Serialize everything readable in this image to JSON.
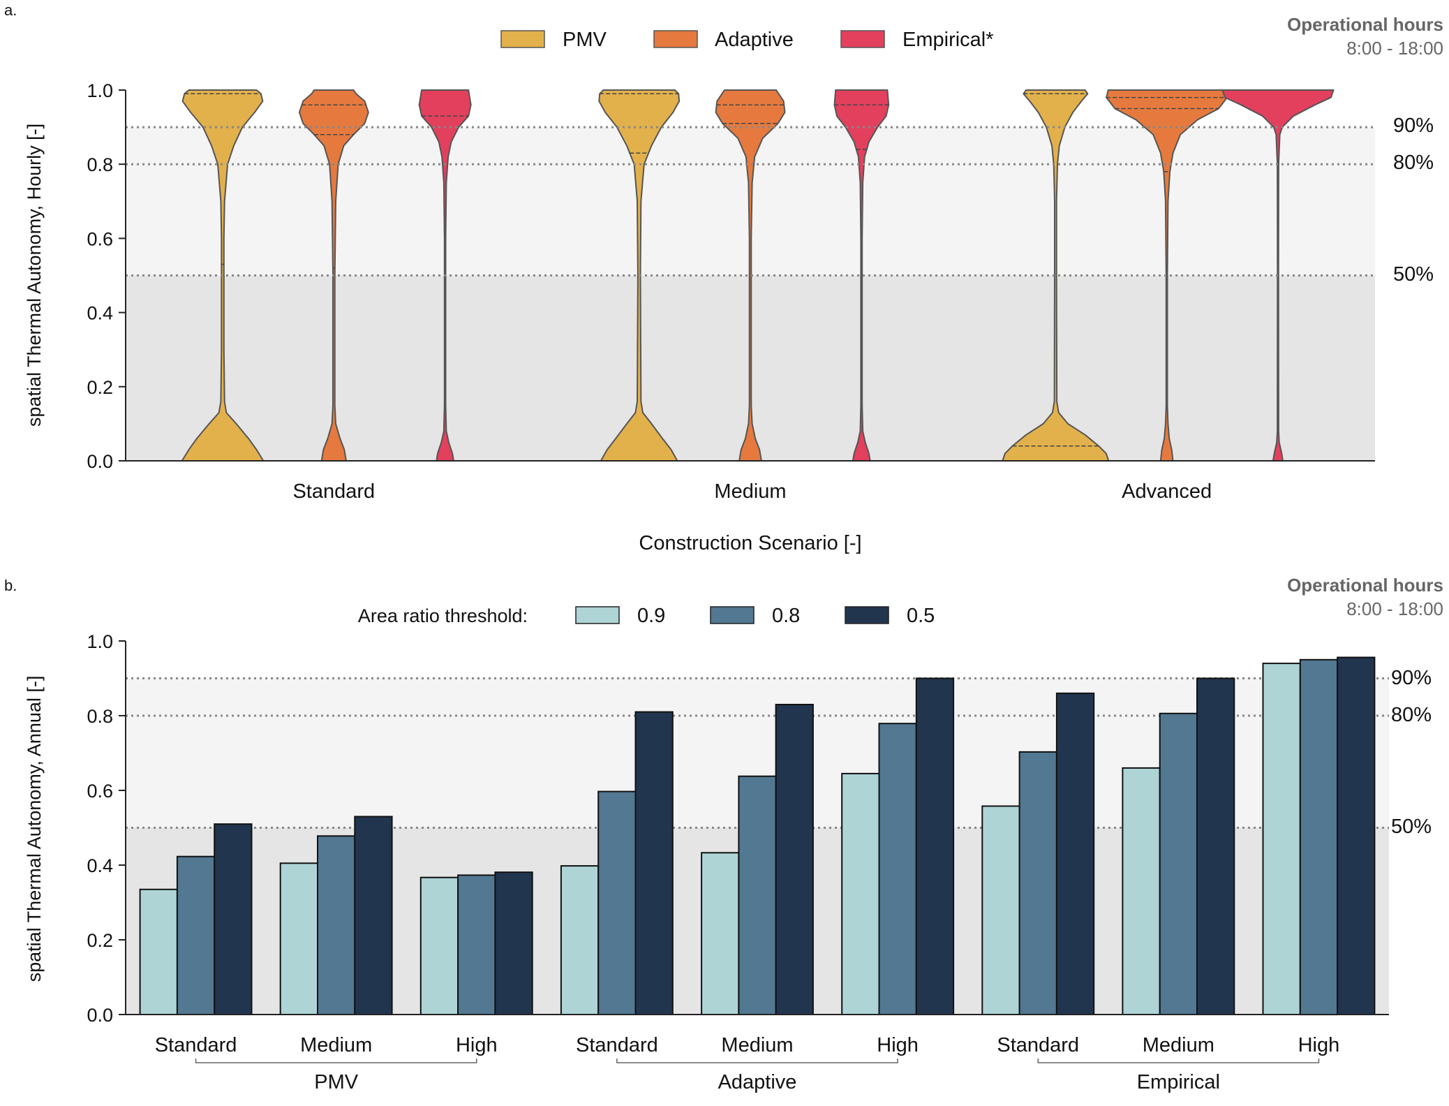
{
  "panel_a": {
    "letter": "a.",
    "ops_title": "Operational hours",
    "ops_time": "8:00 - 18:00",
    "ylabel": "spatial Thermal Autonomy, Hourly [-]",
    "xlabel": "Construction Scenario [-]",
    "legend": [
      "PMV",
      "Adaptive",
      "Empirical*"
    ],
    "ref_labels": [
      "90%",
      "80%",
      "50%"
    ]
  },
  "panel_b": {
    "letter": "b.",
    "ops_title": "Operational hours",
    "ops_time": "8:00 - 18:00",
    "ylabel": "spatial Thermal Autonomy, Annual [-]",
    "legend_title": "Area ratio threshold:",
    "legend": [
      "0.9",
      "0.8",
      "0.5"
    ],
    "ref_labels": [
      "90%",
      "80%",
      "50%"
    ]
  },
  "colors": {
    "pmv": "#E3B14B",
    "adaptive": "#E67A3E",
    "empirical": "#E3405E",
    "t09": "#AED4D6",
    "t08": "#527892",
    "t05": "#22354F",
    "band_light": "#F4F4F4",
    "band_dark": "#E5E5E5",
    "ref_line": "#888888",
    "outline": "#555555"
  },
  "chart_data": [
    {
      "type": "violin",
      "ylabel": "spatial Thermal Autonomy, Hourly [-]",
      "xlabel": "Construction Scenario [-]",
      "ylim": [
        0.0,
        1.0
      ],
      "yticks": [
        "0.0",
        "0.2",
        "0.4",
        "0.6",
        "0.8",
        "1.0"
      ],
      "categories": [
        "Standard",
        "Medium",
        "Advanced"
      ],
      "series": [
        "PMV",
        "Adaptive",
        "Empirical*"
      ],
      "reference_lines": [
        0.9,
        0.8,
        0.5
      ],
      "grid": false,
      "legend_position": "top-center",
      "distributions": [
        {
          "category": "Standard",
          "series": "PMV",
          "quartiles": [
            0.53,
            0.99
          ],
          "profile": [
            [
              0.0,
              0.66
            ],
            [
              0.03,
              0.55
            ],
            [
              0.06,
              0.42
            ],
            [
              0.1,
              0.22
            ],
            [
              0.13,
              0.06
            ],
            [
              0.16,
              0.03
            ],
            [
              0.3,
              0.02
            ],
            [
              0.5,
              0.02
            ],
            [
              0.6,
              0.02
            ],
            [
              0.7,
              0.03
            ],
            [
              0.8,
              0.08
            ],
            [
              0.85,
              0.18
            ],
            [
              0.9,
              0.32
            ],
            [
              0.94,
              0.52
            ],
            [
              0.97,
              0.65
            ],
            [
              0.99,
              0.62
            ],
            [
              1.0,
              0.55
            ]
          ]
        },
        {
          "category": "Standard",
          "series": "Adaptive",
          "quartiles": [
            0.52,
            0.88,
            0.96
          ],
          "profile": [
            [
              0.0,
              0.2
            ],
            [
              0.03,
              0.17
            ],
            [
              0.06,
              0.1
            ],
            [
              0.1,
              0.03
            ],
            [
              0.15,
              0.015
            ],
            [
              0.5,
              0.015
            ],
            [
              0.7,
              0.03
            ],
            [
              0.8,
              0.07
            ],
            [
              0.85,
              0.16
            ],
            [
              0.88,
              0.32
            ],
            [
              0.91,
              0.5
            ],
            [
              0.94,
              0.56
            ],
            [
              0.97,
              0.5
            ],
            [
              0.99,
              0.36
            ],
            [
              1.0,
              0.32
            ]
          ]
        },
        {
          "category": "Standard",
          "series": "Empirical*",
          "quartiles": [
            0.93
          ],
          "profile": [
            [
              0.0,
              0.14
            ],
            [
              0.02,
              0.12
            ],
            [
              0.05,
              0.06
            ],
            [
              0.08,
              0.02
            ],
            [
              0.15,
              0.01
            ],
            [
              0.6,
              0.01
            ],
            [
              0.75,
              0.02
            ],
            [
              0.82,
              0.05
            ],
            [
              0.86,
              0.1
            ],
            [
              0.9,
              0.22
            ],
            [
              0.93,
              0.38
            ],
            [
              0.96,
              0.42
            ],
            [
              1.0,
              0.38
            ]
          ]
        },
        {
          "category": "Medium",
          "series": "PMV",
          "quartiles": [
            0.83,
            0.99
          ],
          "profile": [
            [
              0.0,
              0.62
            ],
            [
              0.03,
              0.52
            ],
            [
              0.06,
              0.38
            ],
            [
              0.1,
              0.2
            ],
            [
              0.13,
              0.06
            ],
            [
              0.16,
              0.03
            ],
            [
              0.5,
              0.02
            ],
            [
              0.7,
              0.03
            ],
            [
              0.8,
              0.08
            ],
            [
              0.85,
              0.2
            ],
            [
              0.9,
              0.36
            ],
            [
              0.94,
              0.55
            ],
            [
              0.97,
              0.65
            ],
            [
              0.99,
              0.64
            ],
            [
              1.0,
              0.58
            ]
          ]
        },
        {
          "category": "Medium",
          "series": "Adaptive",
          "quartiles": [
            0.91,
            0.96
          ],
          "profile": [
            [
              0.0,
              0.18
            ],
            [
              0.03,
              0.15
            ],
            [
              0.06,
              0.08
            ],
            [
              0.1,
              0.03
            ],
            [
              0.15,
              0.015
            ],
            [
              0.6,
              0.015
            ],
            [
              0.75,
              0.03
            ],
            [
              0.82,
              0.07
            ],
            [
              0.87,
              0.2
            ],
            [
              0.91,
              0.45
            ],
            [
              0.94,
              0.56
            ],
            [
              0.97,
              0.54
            ],
            [
              1.0,
              0.42
            ]
          ]
        },
        {
          "category": "Medium",
          "series": "Empirical*",
          "quartiles": [
            0.84,
            0.96
          ],
          "profile": [
            [
              0.0,
              0.14
            ],
            [
              0.02,
              0.12
            ],
            [
              0.05,
              0.06
            ],
            [
              0.08,
              0.02
            ],
            [
              0.15,
              0.01
            ],
            [
              0.6,
              0.01
            ],
            [
              0.75,
              0.02
            ],
            [
              0.82,
              0.05
            ],
            [
              0.86,
              0.12
            ],
            [
              0.9,
              0.26
            ],
            [
              0.93,
              0.4
            ],
            [
              0.96,
              0.44
            ],
            [
              1.0,
              0.42
            ]
          ]
        },
        {
          "category": "Advanced",
          "series": "PMV",
          "quartiles": [
            0.04,
            0.99
          ],
          "profile": [
            [
              0.0,
              0.86
            ],
            [
              0.02,
              0.82
            ],
            [
              0.04,
              0.7
            ],
            [
              0.07,
              0.48
            ],
            [
              0.1,
              0.2
            ],
            [
              0.13,
              0.05
            ],
            [
              0.16,
              0.02
            ],
            [
              0.5,
              0.015
            ],
            [
              0.7,
              0.015
            ],
            [
              0.8,
              0.03
            ],
            [
              0.85,
              0.06
            ],
            [
              0.9,
              0.15
            ],
            [
              0.94,
              0.28
            ],
            [
              0.97,
              0.42
            ],
            [
              0.99,
              0.52
            ],
            [
              1.0,
              0.48
            ]
          ]
        },
        {
          "category": "Advanced",
          "series": "Adaptive",
          "quartiles": [
            0.78,
            0.95,
            0.98
          ],
          "profile": [
            [
              0.0,
              0.1
            ],
            [
              0.03,
              0.08
            ],
            [
              0.06,
              0.04
            ],
            [
              0.1,
              0.02
            ],
            [
              0.15,
              0.01
            ],
            [
              0.5,
              0.01
            ],
            [
              0.7,
              0.02
            ],
            [
              0.78,
              0.05
            ],
            [
              0.83,
              0.1
            ],
            [
              0.88,
              0.22
            ],
            [
              0.92,
              0.5
            ],
            [
              0.95,
              0.84
            ],
            [
              0.98,
              0.98
            ],
            [
              1.0,
              0.95
            ]
          ]
        },
        {
          "category": "Advanced",
          "series": "Empirical*",
          "quartiles": [],
          "profile": [
            [
              0.0,
              0.08
            ],
            [
              0.02,
              0.06
            ],
            [
              0.05,
              0.02
            ],
            [
              0.08,
              0.01
            ],
            [
              0.5,
              0.008
            ],
            [
              0.8,
              0.01
            ],
            [
              0.88,
              0.03
            ],
            [
              0.9,
              0.07
            ],
            [
              0.93,
              0.25
            ],
            [
              0.96,
              0.6
            ],
            [
              0.98,
              0.86
            ],
            [
              1.0,
              0.9
            ]
          ]
        }
      ]
    },
    {
      "type": "bar",
      "ylabel": "spatial Thermal Autonomy, Annual [-]",
      "ylim": [
        0.0,
        1.0
      ],
      "yticks": [
        "0.0",
        "0.2",
        "0.4",
        "0.6",
        "0.8",
        "1.0"
      ],
      "groups": [
        "PMV",
        "Adaptive",
        "Empirical"
      ],
      "categories": [
        "Standard",
        "Medium",
        "High",
        "Standard",
        "Medium",
        "High",
        "Standard",
        "Medium",
        "High"
      ],
      "series": [
        {
          "name": "0.9",
          "values": [
            0.335,
            0.405,
            0.367,
            0.398,
            0.433,
            0.645,
            0.558,
            0.66,
            0.94
          ]
        },
        {
          "name": "0.8",
          "values": [
            0.423,
            0.478,
            0.373,
            0.597,
            0.638,
            0.779,
            0.703,
            0.806,
            0.95
          ]
        },
        {
          "name": "0.5",
          "values": [
            0.51,
            0.53,
            0.381,
            0.81,
            0.83,
            0.9,
            0.86,
            0.9,
            0.956
          ]
        }
      ],
      "reference_lines": [
        0.9,
        0.8,
        0.5
      ],
      "grid": false,
      "legend_position": "top-center"
    }
  ]
}
